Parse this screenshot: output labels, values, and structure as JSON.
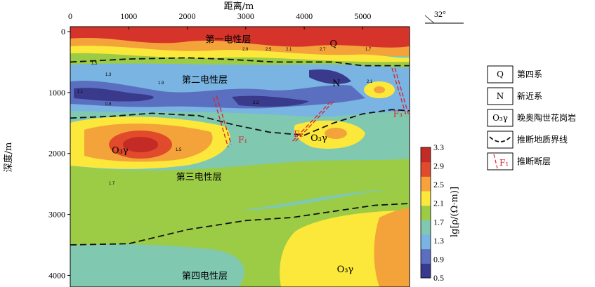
{
  "chart_data": {
    "type": "heatmap",
    "xlabel": "距离/m",
    "ylabel": "深度/m",
    "x_ticks": [
      "0",
      "1000",
      "2000",
      "3000",
      "4000",
      "5000"
    ],
    "y_ticks": [
      "0",
      "1000",
      "2000",
      "3000",
      "4000"
    ],
    "xlim": [
      0,
      5800
    ],
    "ylim": [
      0,
      4400
    ],
    "direction_label": "32°",
    "colorbar": {
      "label": "lg[ρ/(Ω·m)]",
      "ticks": [
        "0.5",
        "0.9",
        "1.3",
        "1.7",
        "2.1",
        "2.5",
        "2.9",
        "3.3"
      ],
      "range": [
        0.5,
        3.3
      ],
      "colors": [
        "#3a3a8c",
        "#5a6fc0",
        "#79b4e2",
        "#80c8b0",
        "#9ccc46",
        "#fbe83a",
        "#f7a23a",
        "#e14a2a",
        "#c42a26"
      ]
    },
    "layer_labels": [
      {
        "text": "第一电性层",
        "x": 2700,
        "depth": 120
      },
      {
        "text": "第二电性层",
        "x": 2300,
        "depth": 780
      },
      {
        "text": "第三电性层",
        "x": 2200,
        "depth": 2380
      },
      {
        "text": "第四电性层",
        "x": 2300,
        "depth": 4000
      }
    ],
    "unit_labels": [
      {
        "text": "Q",
        "x": 4500,
        "depth": 200
      },
      {
        "text": "N",
        "x": 4550,
        "depth": 850
      },
      {
        "text": "O₃γ",
        "x": 850,
        "depth": 1950
      },
      {
        "text": "O₃γ",
        "x": 4250,
        "depth": 1750
      },
      {
        "text": "O₃γ",
        "x": 4700,
        "depth": 3900
      }
    ],
    "fault_labels": [
      {
        "text": "F₁",
        "x": 2950,
        "depth": 1780
      },
      {
        "text": "F₂",
        "x": 3900,
        "depth": 1680
      },
      {
        "text": "F₃",
        "x": 5600,
        "depth": 1350
      }
    ],
    "boundaries": [
      {
        "name": "boundary-1",
        "points": [
          [
            0,
            500
          ],
          [
            1000,
            450
          ],
          [
            2000,
            430
          ],
          [
            2600,
            450
          ],
          [
            3500,
            500
          ],
          [
            4500,
            500
          ],
          [
            5000,
            560
          ],
          [
            5800,
            560
          ]
        ]
      },
      {
        "name": "boundary-2",
        "points": [
          [
            0,
            1420
          ],
          [
            700,
            1390
          ],
          [
            1400,
            1340
          ],
          [
            2200,
            1380
          ],
          [
            2800,
            1530
          ],
          [
            3400,
            1650
          ],
          [
            4000,
            1700
          ],
          [
            4500,
            1500
          ],
          [
            5000,
            1350
          ],
          [
            5500,
            1280
          ],
          [
            5800,
            1300
          ]
        ]
      },
      {
        "name": "boundary-3",
        "points": [
          [
            0,
            3500
          ],
          [
            1000,
            3480
          ],
          [
            2000,
            3250
          ],
          [
            3000,
            3100
          ],
          [
            3800,
            3050
          ],
          [
            4500,
            2950
          ],
          [
            5200,
            2850
          ],
          [
            5800,
            2820
          ]
        ]
      }
    ],
    "faults": [
      {
        "name": "F1",
        "points": [
          [
            2450,
            1080
          ],
          [
            2700,
            1900
          ]
        ]
      },
      {
        "name": "F1b",
        "points": [
          [
            2500,
            1050
          ],
          [
            2750,
            1850
          ]
        ]
      },
      {
        "name": "F2",
        "points": [
          [
            4450,
            1150
          ],
          [
            3800,
            1800
          ]
        ]
      },
      {
        "name": "F2b",
        "points": [
          [
            4500,
            1150
          ],
          [
            3850,
            1800
          ]
        ]
      },
      {
        "name": "F3",
        "points": [
          [
            5500,
            600
          ],
          [
            5750,
            1400
          ]
        ]
      },
      {
        "name": "F3b",
        "points": [
          [
            5550,
            600
          ],
          [
            5780,
            1350
          ]
        ]
      }
    ],
    "contour_labels": [
      "2.9",
      "2.5",
      "2.1",
      "2.7",
      "1.7",
      "1.5",
      "1.3",
      "1.1",
      "0.9",
      "1.9",
      "2.3",
      "2.1",
      "1.5",
      "1.7"
    ],
    "legend": [
      {
        "label": "第四系",
        "symbol": "Q"
      },
      {
        "label": "新近系",
        "symbol": "N"
      },
      {
        "label": "晚奥陶世花岗岩",
        "symbol": "O₃γ"
      },
      {
        "label": "推断地质界线",
        "symbol": "dashed-line"
      },
      {
        "label": "推断断层",
        "symbol": "F₁"
      }
    ]
  }
}
